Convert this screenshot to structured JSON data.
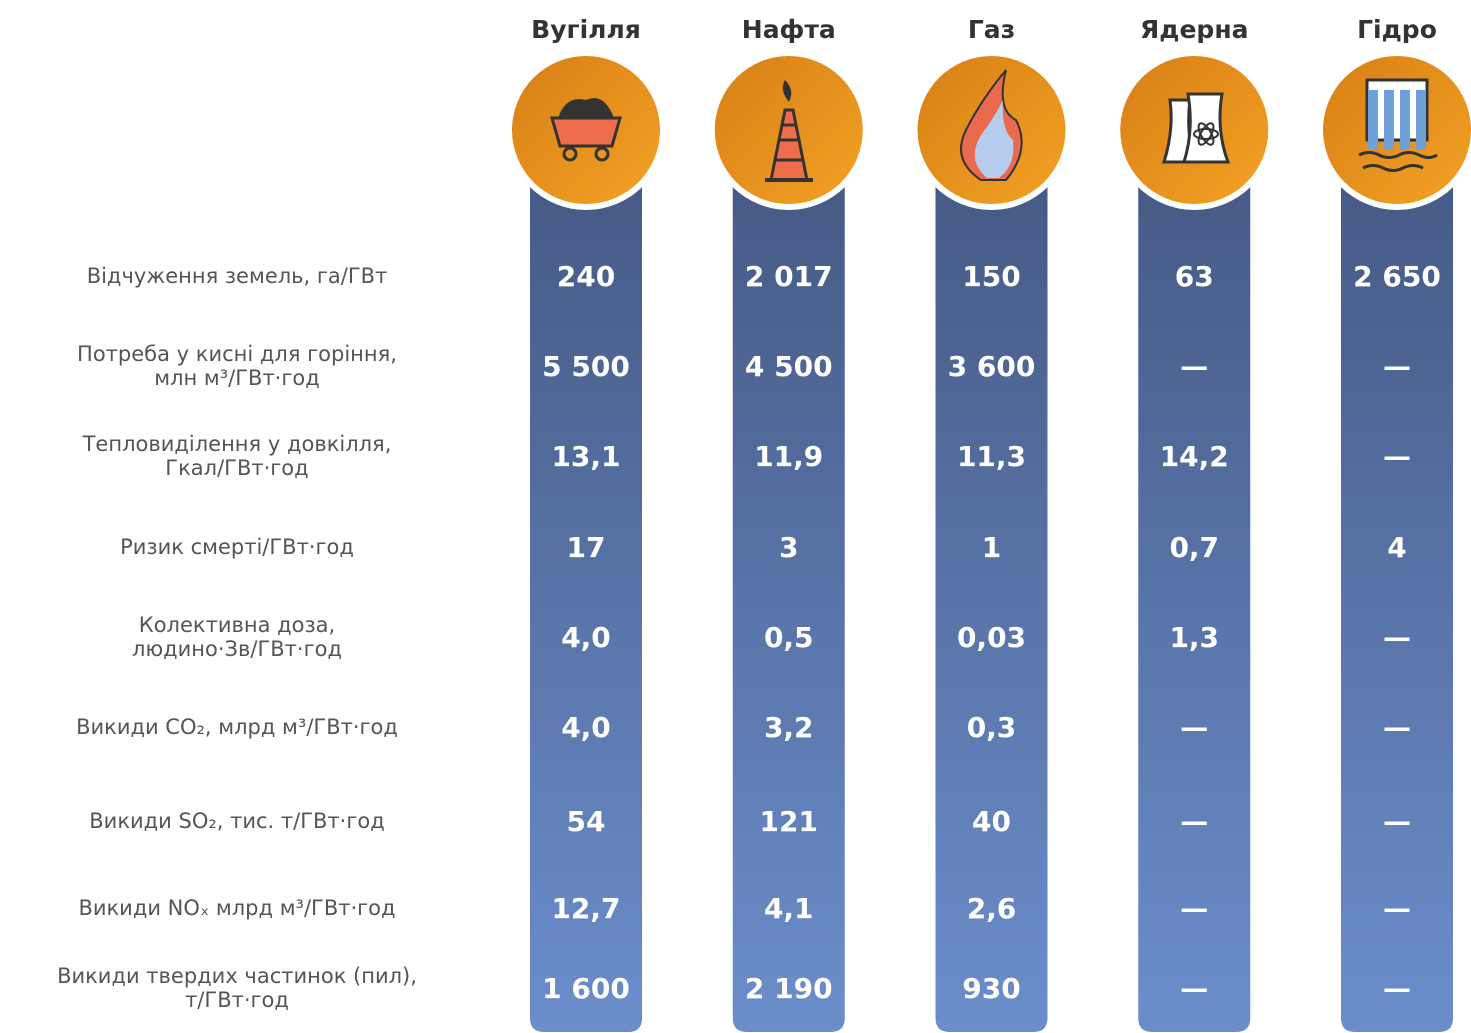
{
  "columns": [
    {
      "title": "Вугілля"
    },
    {
      "title": "Нафта"
    },
    {
      "title": "Газ"
    },
    {
      "title": "Ядерна"
    },
    {
      "title": "Гідро"
    }
  ],
  "rows": [
    {
      "label": [
        "Відчуження земель, га/ГВт"
      ],
      "values": [
        "240",
        "2 017",
        "150",
        "63",
        "2 650"
      ]
    },
    {
      "label": [
        "Потреба у кисні для горіння,",
        "млн м³/ГВт·год"
      ],
      "values": [
        "5 500",
        "4 500",
        "3 600",
        "—",
        "—"
      ]
    },
    {
      "label": [
        "Тепловиділення у довкілля,",
        "Гкал/ГВт·год"
      ],
      "values": [
        "13,1",
        "11,9",
        "11,3",
        "14,2",
        "—"
      ]
    },
    {
      "label": [
        "Ризик смерті/ГВт·год"
      ],
      "values": [
        "17",
        "3",
        "1",
        "0,7",
        "4"
      ]
    },
    {
      "label": [
        "Колективна доза,",
        "людино·Зв/ГВт·год"
      ],
      "values": [
        "4,0",
        "0,5",
        "0,03",
        "1,3",
        "—"
      ]
    },
    {
      "label": [
        "Викиди CO₂, млрд м³/ГВт·год"
      ],
      "values": [
        "4,0",
        "3,2",
        "0,3",
        "—",
        "—"
      ]
    },
    {
      "label": [
        "Викиди SO₂, тис. т/ГВт·год"
      ],
      "values": [
        "54",
        "121",
        "40",
        "—",
        "—"
      ]
    },
    {
      "label": [
        "Викиди NOₓ млрд м³/ГВт·год"
      ],
      "values": [
        "12,7",
        "4,1",
        "2,6",
        "—",
        "—"
      ]
    },
    {
      "label": [
        "Викиди твердих частинок (пил),",
        "т/ГВт·год"
      ],
      "values": [
        "1 600",
        "2 190",
        "930",
        "—",
        "—"
      ]
    }
  ]
}
